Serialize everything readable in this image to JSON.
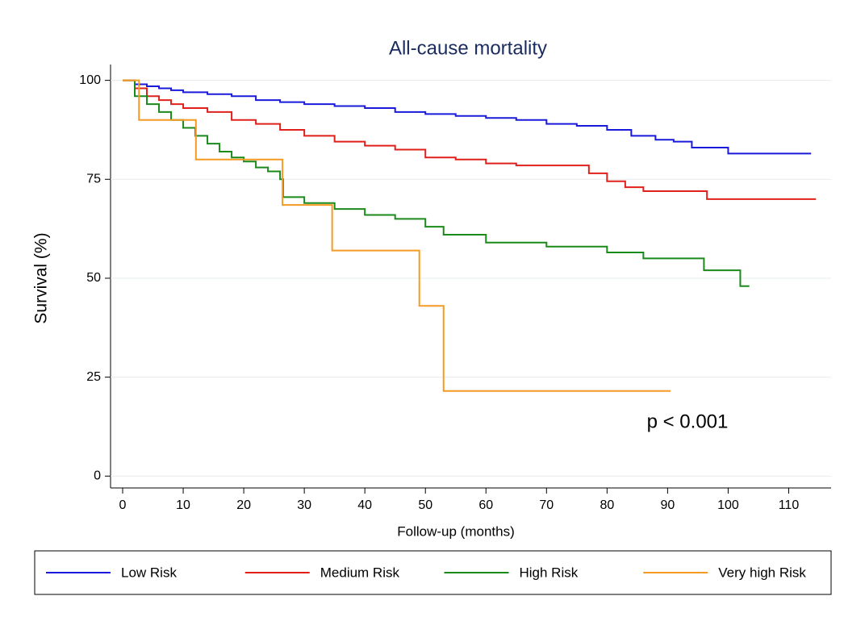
{
  "chart_data": {
    "type": "line",
    "step": true,
    "title": "All-cause mortality",
    "x_label": "Follow-up (months)",
    "y_label": "Survival (%)",
    "annotation": "p < 0.001",
    "xlim": [
      -2,
      117
    ],
    "ylim": [
      -3,
      104
    ],
    "xticks": [
      0,
      10,
      20,
      30,
      40,
      50,
      60,
      70,
      80,
      90,
      100,
      110
    ],
    "yticks": [
      0,
      25,
      50,
      75,
      100
    ],
    "grid": true,
    "legend": "bottom",
    "series": [
      {
        "name": "Low Risk",
        "color": "#1a1adb",
        "x": [
          0,
          2,
          4,
          6,
          8,
          10,
          14,
          18,
          22,
          26,
          30,
          35,
          40,
          45,
          50,
          55,
          60,
          65,
          70,
          75,
          80,
          84,
          88,
          91,
          94,
          100,
          113.7
        ],
        "values": [
          100,
          99,
          98.5,
          98,
          97.5,
          97,
          96.5,
          96,
          95,
          94.5,
          94,
          93.5,
          93,
          92,
          91.5,
          91,
          90.5,
          90,
          89,
          88.5,
          87.5,
          86,
          85,
          84.5,
          83,
          81.5,
          81.5
        ]
      },
      {
        "name": "Medium Risk",
        "color": "#e0201b",
        "x": [
          0,
          2,
          4,
          6,
          8,
          10,
          14,
          18,
          22,
          26,
          30,
          35,
          40,
          45,
          50,
          55,
          60,
          65,
          70,
          77,
          80,
          83,
          86,
          96.5,
          114.5
        ],
        "values": [
          100,
          98,
          96,
          95,
          94,
          93,
          92,
          90,
          89,
          87.5,
          86,
          84.5,
          83.5,
          82.5,
          80.5,
          80,
          79,
          78.5,
          78.5,
          76.5,
          74.5,
          73,
          72,
          70,
          70
        ]
      },
      {
        "name": "High Risk",
        "color": "#1a8a1a",
        "x": [
          0,
          2,
          4,
          6,
          8,
          10,
          12,
          14,
          16,
          18,
          20,
          22,
          24,
          26,
          26.5,
          30,
          35,
          40,
          45,
          50,
          53,
          60,
          70,
          80,
          86,
          96,
          102,
          103.5
        ],
        "values": [
          100,
          96,
          94,
          92,
          90,
          88,
          86,
          84,
          82,
          80.5,
          79.5,
          78,
          77,
          75,
          70.5,
          69,
          67.5,
          66,
          65,
          63,
          61,
          59,
          58,
          56.5,
          55,
          52,
          48,
          48
        ]
      },
      {
        "name": "Very high Risk",
        "color": "#f59a23",
        "x": [
          0,
          2.7,
          12.1,
          26.4,
          34.6,
          49,
          53,
          90.5
        ],
        "values": [
          100,
          90,
          80,
          68.5,
          57,
          43,
          21.5,
          21.5
        ]
      }
    ]
  }
}
